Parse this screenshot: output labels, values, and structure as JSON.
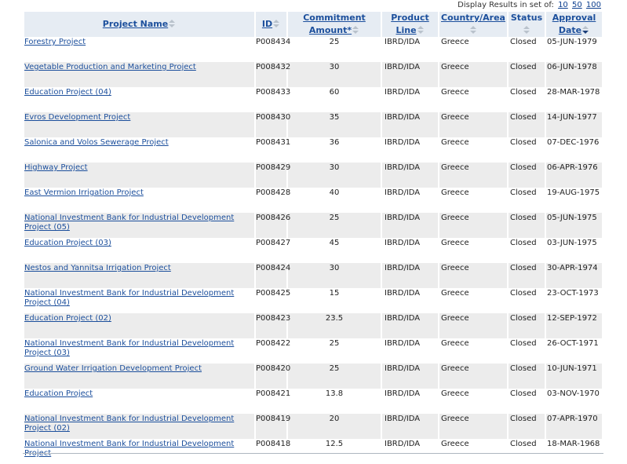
{
  "display_results": {
    "label": "Display Results in set of:",
    "options": [
      "10",
      "50",
      "100"
    ]
  },
  "table": {
    "columns": {
      "name": "Project Name",
      "id": "ID",
      "amount_line1": "Commitment",
      "amount_line2": "Amount*",
      "product_line1": "Product",
      "product_line2": "Line",
      "country": "Country/Area",
      "status": "Status",
      "date_line1": "Approval",
      "date_line2": "Date"
    },
    "rows": [
      {
        "name": "Forestry Project",
        "id": "P008434",
        "amount": "25",
        "line": "IBRD/IDA",
        "country": "Greece",
        "status": "Closed",
        "date": "05-JUN-1979"
      },
      {
        "name": "Vegetable Production and Marketing Project",
        "id": "P008432",
        "amount": "30",
        "line": "IBRD/IDA",
        "country": "Greece",
        "status": "Closed",
        "date": "06-JUN-1978"
      },
      {
        "name": "Education Project (04)",
        "id": "P008433",
        "amount": "60",
        "line": "IBRD/IDA",
        "country": "Greece",
        "status": "Closed",
        "date": "28-MAR-1978"
      },
      {
        "name": "Evros Development Project",
        "id": "P008430",
        "amount": "35",
        "line": "IBRD/IDA",
        "country": "Greece",
        "status": "Closed",
        "date": "14-JUN-1977"
      },
      {
        "name": "Salonica and Volos Sewerage Project",
        "id": "P008431",
        "amount": "36",
        "line": "IBRD/IDA",
        "country": "Greece",
        "status": "Closed",
        "date": "07-DEC-1976"
      },
      {
        "name": "Highway Project",
        "id": "P008429",
        "amount": "30",
        "line": "IBRD/IDA",
        "country": "Greece",
        "status": "Closed",
        "date": "06-APR-1976"
      },
      {
        "name": "East Vermion Irrigation Project",
        "id": "P008428",
        "amount": "40",
        "line": "IBRD/IDA",
        "country": "Greece",
        "status": "Closed",
        "date": "19-AUG-1975"
      },
      {
        "name": "National Investment Bank for Industrial Development Project (05)",
        "id": "P008426",
        "amount": "25",
        "line": "IBRD/IDA",
        "country": "Greece",
        "status": "Closed",
        "date": "05-JUN-1975"
      },
      {
        "name": "Education Project (03)",
        "id": "P008427",
        "amount": "45",
        "line": "IBRD/IDA",
        "country": "Greece",
        "status": "Closed",
        "date": "03-JUN-1975"
      },
      {
        "name": "Nestos and Yannitsa Irrigation Project",
        "id": "P008424",
        "amount": "30",
        "line": "IBRD/IDA",
        "country": "Greece",
        "status": "Closed",
        "date": "30-APR-1974"
      },
      {
        "name": "National Investment Bank for Industrial Development Project (04)",
        "id": "P008425",
        "amount": "15",
        "line": "IBRD/IDA",
        "country": "Greece",
        "status": "Closed",
        "date": "23-OCT-1973"
      },
      {
        "name": "Education Project (02)",
        "id": "P008423",
        "amount": "23.5",
        "line": "IBRD/IDA",
        "country": "Greece",
        "status": "Closed",
        "date": "12-SEP-1972"
      },
      {
        "name": "National Investment Bank for Industrial Development Project (03)",
        "id": "P008422",
        "amount": "25",
        "line": "IBRD/IDA",
        "country": "Greece",
        "status": "Closed",
        "date": "26-OCT-1971"
      },
      {
        "name": "Ground Water Irrigation Development Project",
        "id": "P008420",
        "amount": "25",
        "line": "IBRD/IDA",
        "country": "Greece",
        "status": "Closed",
        "date": "10-JUN-1971"
      },
      {
        "name": "Education Project",
        "id": "P008421",
        "amount": "13.8",
        "line": "IBRD/IDA",
        "country": "Greece",
        "status": "Closed",
        "date": "03-NOV-1970"
      },
      {
        "name": "National Investment Bank for Industrial Development Project (02)",
        "id": "P008419",
        "amount": "20",
        "line": "IBRD/IDA",
        "country": "Greece",
        "status": "Closed",
        "date": "07-APR-1970"
      },
      {
        "name": "National Investment Bank for Industrial Development Project",
        "id": "P008418",
        "amount": "12.5",
        "line": "IBRD/IDA",
        "country": "Greece",
        "status": "Closed",
        "date": "18-MAR-1968"
      }
    ]
  }
}
